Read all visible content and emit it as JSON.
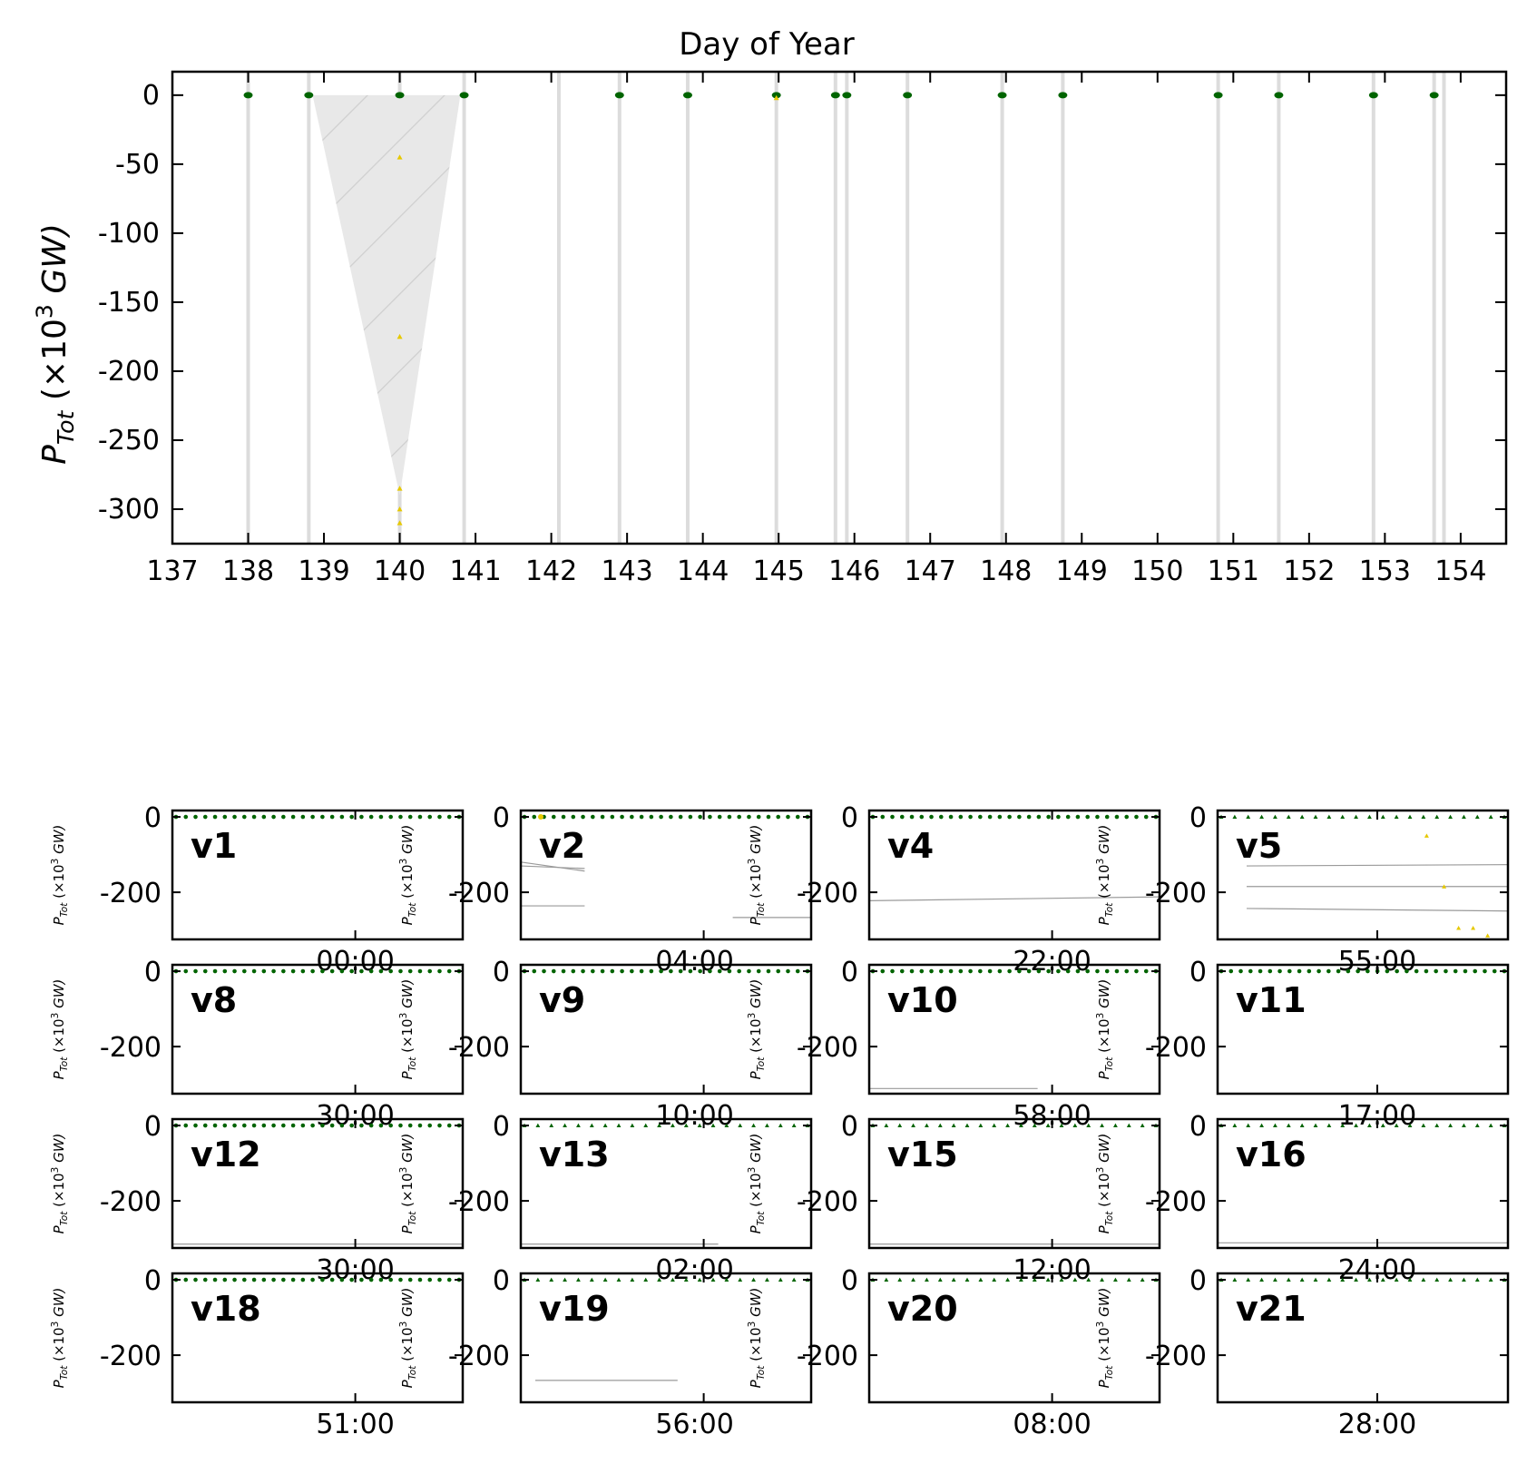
{
  "chart_data": [
    {
      "type": "scatter",
      "title": "Day of Year",
      "xlabel": "",
      "ylabel": {
        "base": "P",
        "sub": "Tot",
        "rest": " (×10",
        "sup": "3",
        "unit": " GW)"
      },
      "xlim": [
        137,
        154.6
      ],
      "ylim": [
        -325,
        17
      ],
      "xticks": [
        137,
        138,
        139,
        140,
        141,
        142,
        143,
        144,
        145,
        146,
        147,
        148,
        149,
        150,
        151,
        152,
        153,
        154
      ],
      "yticks": [
        0,
        -50,
        -100,
        -150,
        -200,
        -250,
        -300
      ],
      "event_days": [
        138.0,
        138.8,
        140.0,
        140.85,
        142.1,
        142.9,
        143.8,
        144.97,
        145.75,
        145.9,
        146.7,
        147.95,
        148.75,
        150.8,
        151.6,
        152.85,
        153.65,
        153.78
      ],
      "shaded_region": {
        "x": [
          138.85,
          140.0,
          140.8
        ],
        "y": [
          0,
          -290,
          0
        ]
      },
      "series": [
        {
          "color": "#006400",
          "marker": "circle",
          "x": [
            138.0,
            138.8,
            140.0,
            140.85,
            142.9,
            143.8,
            144.97,
            145.75,
            145.9,
            146.7,
            147.95,
            148.75,
            150.8,
            151.6,
            152.85,
            153.65
          ],
          "y": [
            0,
            0,
            0,
            0,
            0,
            0,
            0,
            0,
            0,
            0,
            0,
            0,
            0,
            0,
            0,
            0
          ]
        },
        {
          "color": "#e6c800",
          "marker": "triangle",
          "x": [
            140.0,
            140.0,
            140.0,
            140.0,
            140.0,
            144.97
          ],
          "y": [
            -45,
            -175,
            -285,
            -300,
            -310,
            -2
          ]
        }
      ]
    },
    {
      "type": "scatter",
      "subplots": [
        {
          "label": "v1",
          "xtick": "00:00"
        },
        {
          "label": "v2",
          "xtick": "04:00"
        },
        {
          "label": "v4",
          "xtick": "22:00"
        },
        {
          "label": "v5",
          "xtick": "55:00"
        },
        {
          "label": "v8",
          "xtick": "30:00"
        },
        {
          "label": "v9",
          "xtick": "10:00"
        },
        {
          "label": "v10",
          "xtick": "58:00"
        },
        {
          "label": "v11",
          "xtick": "17:00"
        },
        {
          "label": "v12",
          "xtick": "30:00"
        },
        {
          "label": "v13",
          "xtick": "02:00"
        },
        {
          "label": "v15",
          "xtick": "12:00"
        },
        {
          "label": "v16",
          "xtick": "24:00"
        },
        {
          "label": "v18",
          "xtick": "51:00"
        },
        {
          "label": "v19",
          "xtick": "56:00"
        },
        {
          "label": "v20",
          "xtick": "08:00"
        },
        {
          "label": "v21",
          "xtick": "28:00"
        }
      ],
      "yticks": [
        0,
        -200
      ],
      "ylim": [
        -325,
        17
      ],
      "ylabel": {
        "base": "P",
        "sub": "Tot",
        "rest": " (×10",
        "sup": "3",
        "unit": " GW)"
      }
    }
  ]
}
